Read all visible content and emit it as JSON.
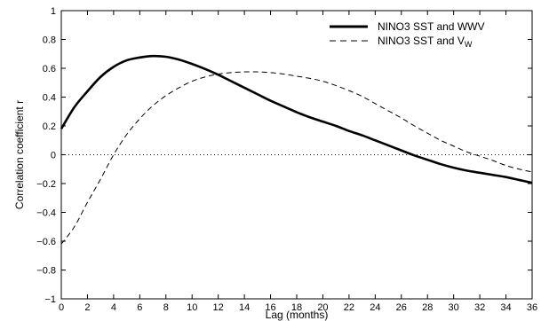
{
  "chart_data": {
    "type": "line",
    "title": "",
    "xlabel": "Lag (months)",
    "ylabel": "Correlation coefficient r",
    "xlim": [
      0,
      36
    ],
    "ylim": [
      -1,
      1
    ],
    "x_ticks": [
      0,
      2,
      4,
      6,
      8,
      10,
      12,
      14,
      16,
      18,
      20,
      22,
      24,
      26,
      28,
      30,
      32,
      34,
      36
    ],
    "y_ticks": [
      -1,
      -0.8,
      -0.6,
      -0.4,
      -0.2,
      0,
      0.2,
      0.4,
      0.6,
      0.8,
      1
    ],
    "y_tick_labels": [
      "−1",
      "−0.8",
      "−0.6",
      "−0.4",
      "−0.2",
      "0",
      "0.2",
      "0.4",
      "0.6",
      "0.8",
      "1"
    ],
    "zero_line": "dotted",
    "grid": false,
    "legend_position": "top-right",
    "series": [
      {
        "name": "NINO3 SST and WWV",
        "style": "solid",
        "color": "#000000",
        "x": [
          0,
          1,
          2,
          3,
          4,
          5,
          6,
          7,
          8,
          9,
          10,
          11,
          12,
          13,
          14,
          15,
          16,
          17,
          18,
          19,
          20,
          21,
          22,
          23,
          24,
          25,
          26,
          27,
          28,
          29,
          30,
          31,
          32,
          33,
          34,
          35,
          36
        ],
        "values": [
          0.18,
          0.33,
          0.44,
          0.54,
          0.61,
          0.655,
          0.675,
          0.685,
          0.68,
          0.66,
          0.63,
          0.595,
          0.555,
          0.51,
          0.465,
          0.42,
          0.375,
          0.335,
          0.295,
          0.26,
          0.23,
          0.2,
          0.165,
          0.135,
          0.1,
          0.065,
          0.03,
          -0.005,
          -0.035,
          -0.065,
          -0.09,
          -0.11,
          -0.125,
          -0.14,
          -0.155,
          -0.175,
          -0.195
        ]
      },
      {
        "name": "NINO3 SST and V",
        "name_subscript": "W",
        "style": "dashed",
        "color": "#000000",
        "x": [
          0,
          1,
          2,
          3,
          4,
          5,
          6,
          7,
          8,
          9,
          10,
          11,
          12,
          13,
          14,
          15,
          16,
          17,
          18,
          19,
          20,
          21,
          22,
          23,
          24,
          25,
          26,
          27,
          28,
          29,
          30,
          31,
          32,
          33,
          34,
          35,
          36
        ],
        "values": [
          -0.62,
          -0.5,
          -0.33,
          -0.17,
          0.0,
          0.14,
          0.25,
          0.34,
          0.41,
          0.465,
          0.51,
          0.54,
          0.56,
          0.57,
          0.575,
          0.575,
          0.57,
          0.56,
          0.545,
          0.53,
          0.51,
          0.48,
          0.445,
          0.405,
          0.355,
          0.305,
          0.255,
          0.2,
          0.15,
          0.1,
          0.06,
          0.02,
          -0.01,
          -0.04,
          -0.075,
          -0.1,
          -0.12
        ]
      }
    ]
  }
}
